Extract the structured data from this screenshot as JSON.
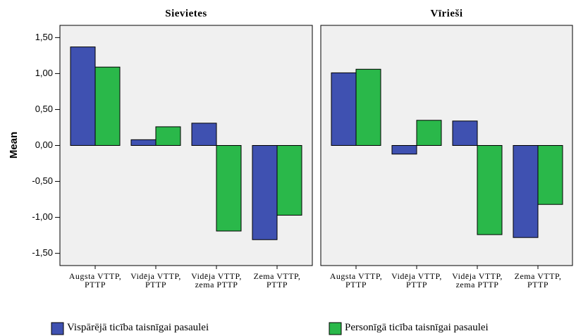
{
  "chart_data": [
    {
      "type": "bar",
      "title": "Sievietes",
      "ylabel": "Mean",
      "categories": [
        "Augsta VTTP, PTTP",
        "Vidēja VTTP, PTTP",
        "Vidēja VTTP, zema PTTP",
        "Zema VTTP, PTTP"
      ],
      "series": [
        {
          "name": "Vispārējā ticība taisnīgai pasaulei",
          "color": "#3f51b1",
          "values": [
            1.37,
            0.08,
            0.31,
            -1.31
          ]
        },
        {
          "name": "Personīgā ticība taisnīgai pasaulei",
          "color": "#2ab84a",
          "values": [
            1.09,
            0.26,
            -1.19,
            -0.97
          ]
        }
      ],
      "ylim": [
        -1.67,
        1.67
      ],
      "yticks": [
        {
          "value": 1.5,
          "label": "1,50"
        },
        {
          "value": 1,
          "label": "1,00"
        },
        {
          "value": 0.5,
          "label": "0,50"
        },
        {
          "value": 0,
          "label": "0,00"
        },
        {
          "value": -0.5,
          "label": "-0,50"
        },
        {
          "value": -1,
          "label": "-1,00"
        },
        {
          "value": -1.5,
          "label": "-1,50"
        }
      ]
    },
    {
      "type": "bar",
      "title": "Vīrieši",
      "categories": [
        "Augsta VTTP, PTTP",
        "Vidēja VTTP, PTTP",
        "Vidēja VTTP, zema PTTP",
        "Zema VTTP, PTTP"
      ],
      "series": [
        {
          "color": "#3f51b1",
          "values": [
            1.01,
            -0.12,
            0.34,
            -1.28
          ]
        },
        {
          "color": "#2ab84a",
          "values": [
            1.06,
            0.35,
            -1.24,
            -0.82
          ]
        }
      ],
      "ylim": [
        -1.67,
        1.67
      ]
    }
  ]
}
